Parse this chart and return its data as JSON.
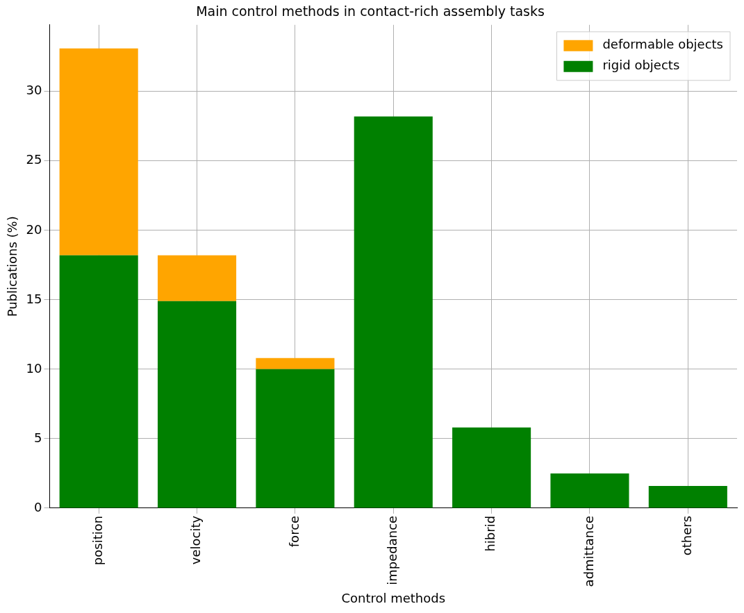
{
  "chart_data": {
    "type": "bar",
    "title": "Main control methods in contact-rich assembly tasks",
    "xlabel": "Control methods",
    "ylabel": "Publications (%)",
    "categories": [
      "position",
      "velocity",
      "force",
      "impedance",
      "hibrid",
      "admittance",
      "others"
    ],
    "stacked": true,
    "series": [
      {
        "name": "rigid objects",
        "color": "#008000",
        "values": [
          18.2,
          14.9,
          10.0,
          28.2,
          5.8,
          2.5,
          1.6
        ]
      },
      {
        "name": "deformable objects",
        "color": "#ffa500",
        "values": [
          14.9,
          3.3,
          0.8,
          0,
          0,
          0,
          0
        ]
      }
    ],
    "ylim": [
      0,
      34.8
    ],
    "yticks": [
      0,
      5,
      10,
      15,
      20,
      25,
      30
    ],
    "grid": true,
    "legend": "top right"
  }
}
